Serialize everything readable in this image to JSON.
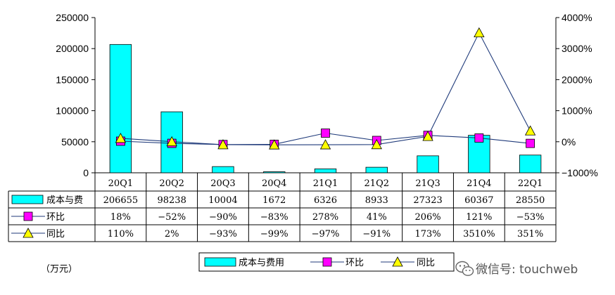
{
  "chart_data": {
    "type": "bar",
    "categories": [
      "20Q1",
      "20Q2",
      "20Q3",
      "20Q4",
      "21Q1",
      "21Q2",
      "21Q3",
      "21Q4",
      "22Q1"
    ],
    "series": [
      {
        "name": "成本与费用",
        "kind": "bar",
        "axis": "left",
        "values": [
          206655,
          98238,
          10004,
          1672,
          6326,
          8933,
          27323,
          60367,
          28550
        ],
        "labels": [
          "206655",
          "98238",
          "10004",
          "1672",
          "6326",
          "8933",
          "27323",
          "60367",
          "28550"
        ],
        "color": "#00ffff"
      },
      {
        "name": "环比",
        "kind": "line",
        "axis": "right",
        "marker": "square",
        "values": [
          18,
          -52,
          -90,
          -83,
          278,
          41,
          206,
          121,
          -53
        ],
        "labels": [
          "18%",
          "-52%",
          "-90%",
          "-83%",
          "278%",
          "41%",
          "206%",
          "121%",
          "-53%"
        ],
        "color": "#ff00ff"
      },
      {
        "name": "同比",
        "kind": "line",
        "axis": "right",
        "marker": "triangle",
        "values": [
          110,
          2,
          -93,
          -99,
          -97,
          -91,
          173,
          3510,
          351
        ],
        "labels": [
          "110%",
          "2%",
          "-93%",
          "-99%",
          "-97%",
          "-91%",
          "173%",
          "3510%",
          "351%"
        ],
        "color": "#ffff00"
      }
    ],
    "left_axis": {
      "min": 0,
      "max": 250000,
      "ticks": [
        "0",
        "50000",
        "100000",
        "150000",
        "200000",
        "250000"
      ]
    },
    "right_axis": {
      "min": -1000,
      "max": 4000,
      "ticks": [
        "-1000%",
        "0%",
        "1000%",
        "2000%",
        "3000%",
        "4000%"
      ]
    },
    "table_row_labels": [
      "成本与费",
      "环比",
      "同比"
    ],
    "legend": {
      "placement": "bottom",
      "items": [
        "成本与费用",
        "环比",
        "同比"
      ]
    },
    "unit_label": "（万元）",
    "grid": false
  },
  "watermark": {
    "text": "微信号: touchweb",
    "icon": "wechat-icon"
  }
}
